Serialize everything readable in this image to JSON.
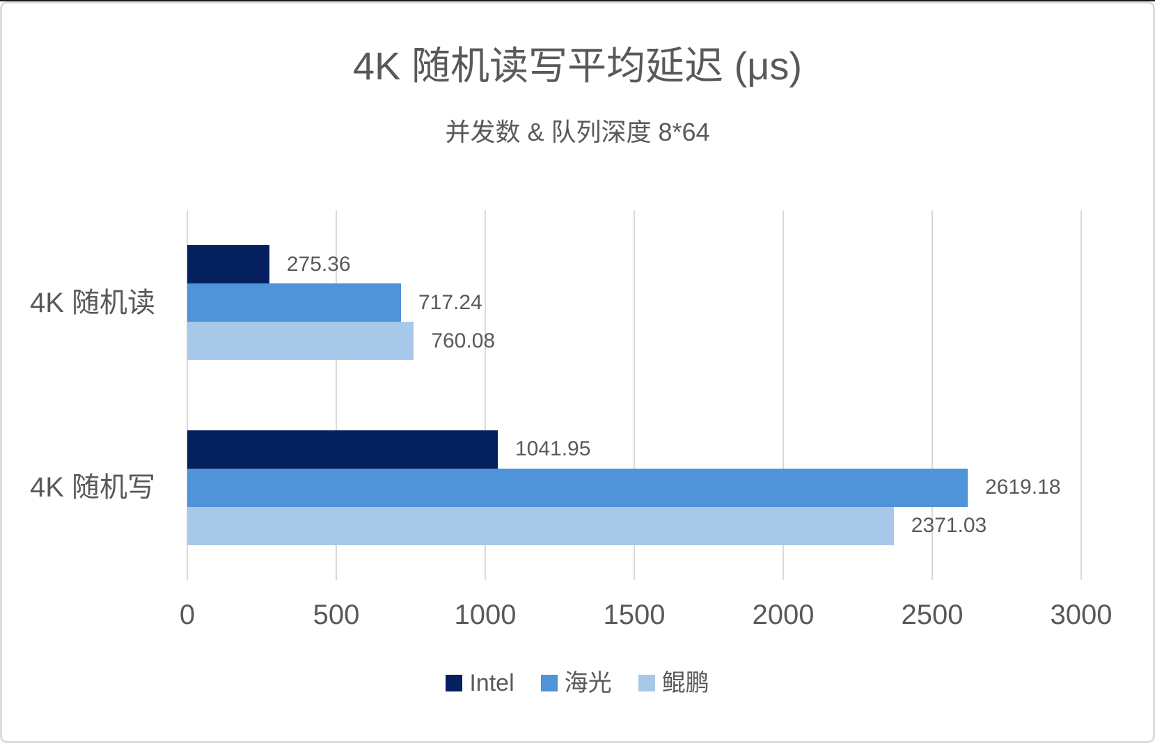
{
  "card": {
    "title": "4K 随机读写平均延迟 (μs)",
    "subtitle": "并发数 & 队列深度 8*64"
  },
  "chart_data": {
    "type": "bar",
    "orientation": "horizontal",
    "title": "4K 随机读写平均延迟 (μs)",
    "subtitle": "并发数 & 队列深度 8*64",
    "categories": [
      "4K 随机读",
      "4K 随机写"
    ],
    "series": [
      {
        "name": "Intel",
        "color": "#04205e",
        "values": [
          275.36,
          1041.95
        ]
      },
      {
        "name": "海光",
        "color": "#4f93d8",
        "values": [
          717.24,
          2619.18
        ]
      },
      {
        "name": "鲲鹏",
        "color": "#a7c8e9",
        "values": [
          760.08,
          2371.03
        ]
      }
    ],
    "value_labels": {
      "Intel": [
        "275.36",
        "1041.95"
      ],
      "海光": [
        "717.24",
        "2619.18"
      ],
      "鲲鹏": [
        "760.08",
        "2371.03"
      ]
    },
    "xlim": [
      0,
      3000
    ],
    "x_ticks": [
      "0",
      "500",
      "1000",
      "1500",
      "2000",
      "2500",
      "3000"
    ],
    "grid": "vertical-only",
    "legend_position": "bottom",
    "colors": {
      "text": "#595959",
      "gridline": "#d9d9d9",
      "background": "#ffffff",
      "card_border": "#dcdcdc"
    }
  }
}
